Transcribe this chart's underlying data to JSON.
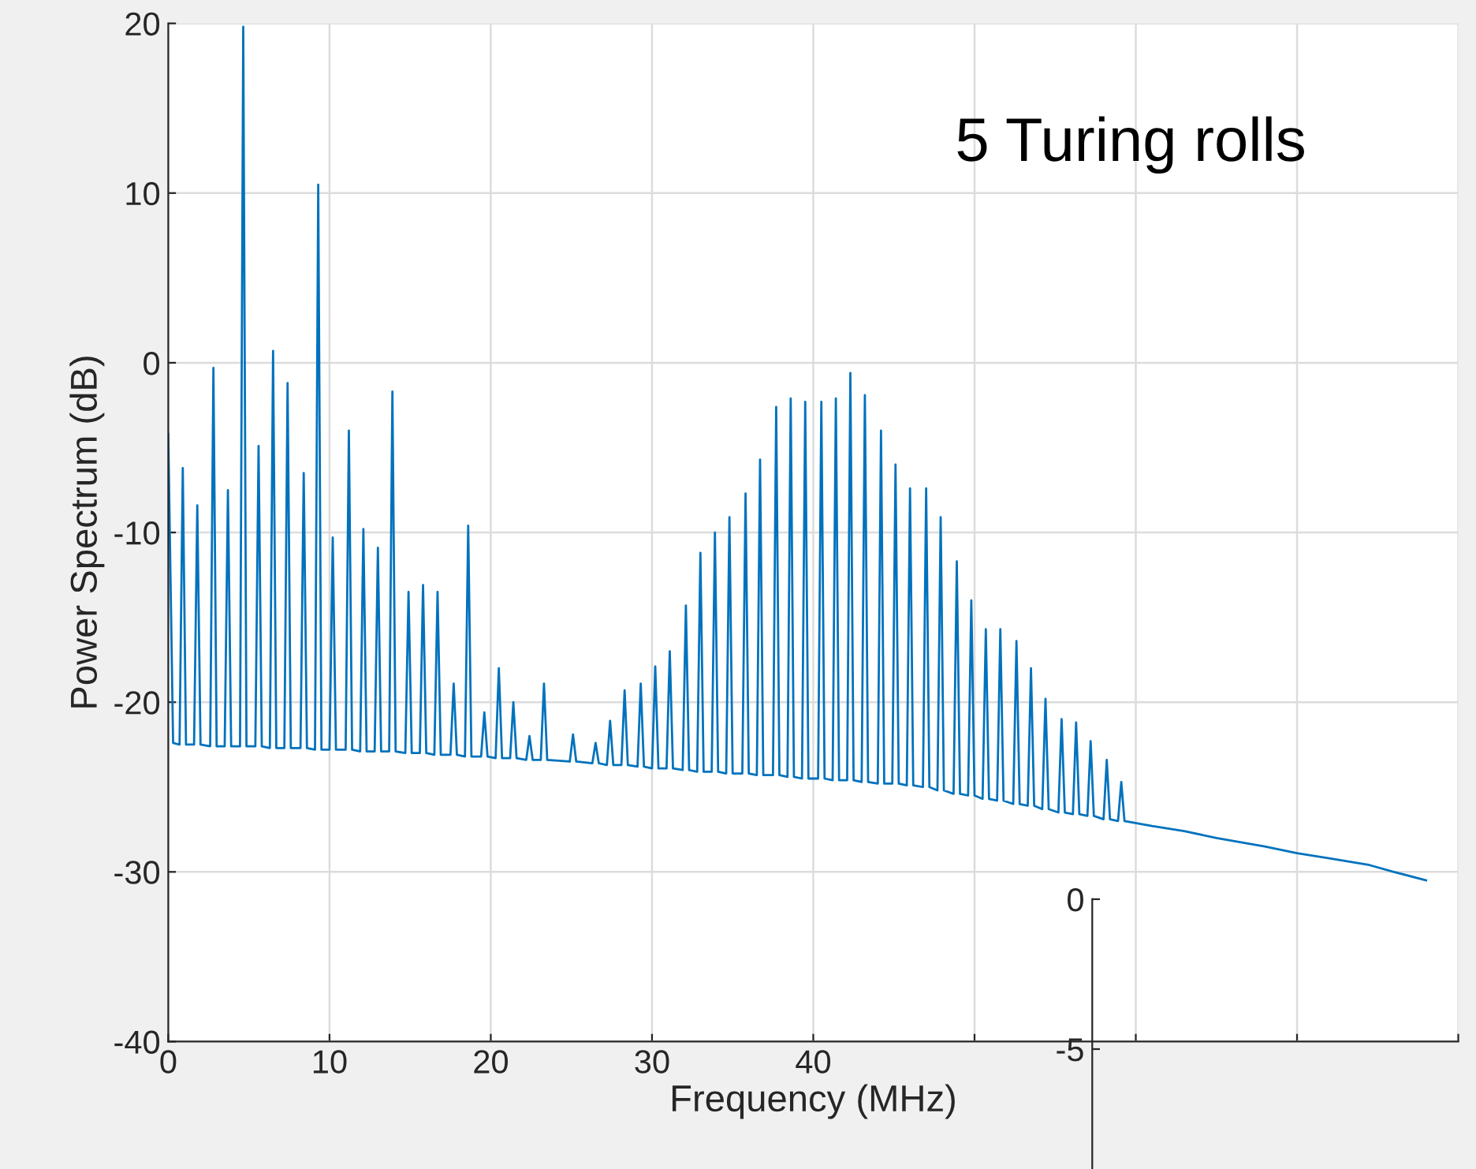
{
  "chart_data": [
    {
      "type": "line",
      "xlabel": "Frequency (MHz)",
      "ylabel": "Power Spectrum (dB)",
      "annotations": [
        "5 Turing rolls"
      ],
      "xlim": [
        0,
        80
      ],
      "xticks": [
        0,
        10,
        20,
        30,
        40,
        {
          "value": 50,
          "label": null
        },
        {
          "value": 60,
          "label": null
        },
        {
          "value": 70,
          "label": null
        },
        {
          "value": 80,
          "label": null
        }
      ],
      "ylim": [
        -40,
        20
      ],
      "yticks": [
        -40,
        -30,
        -20,
        -10,
        0,
        10,
        20
      ],
      "grid": true,
      "series": [
        {
          "color": "#0072bd",
          "x": [
            0,
            0.3,
            0.7,
            0.9,
            1.1,
            1.6,
            1.8,
            2.0,
            2.6,
            2.8,
            3.0,
            3.5,
            3.7,
            3.9,
            4.45,
            4.65,
            4.85,
            5.4,
            5.6,
            5.8,
            6.3,
            6.5,
            6.7,
            7.2,
            7.4,
            7.6,
            8.2,
            8.4,
            8.6,
            9.1,
            9.3,
            9.5,
            10.0,
            10.2,
            10.4,
            11.0,
            11.2,
            11.4,
            11.9,
            12.1,
            12.3,
            12.8,
            13.0,
            13.2,
            13.7,
            13.9,
            14.1,
            14.7,
            14.9,
            15.1,
            15.6,
            15.8,
            16.0,
            16.5,
            16.7,
            16.9,
            17.5,
            17.7,
            17.9,
            18.4,
            18.6,
            18.8,
            19.4,
            19.6,
            19.8,
            20.3,
            20.5,
            20.7,
            21.2,
            21.4,
            21.6,
            22.2,
            22.4,
            22.6,
            23.1,
            23.3,
            23.5,
            24.9,
            25.1,
            25.3,
            26.3,
            26.5,
            26.7,
            27.2,
            27.4,
            27.6,
            28.1,
            28.3,
            28.5,
            29.1,
            29.3,
            29.5,
            30.0,
            30.2,
            30.4,
            30.9,
            31.1,
            31.3,
            31.9,
            32.1,
            32.3,
            32.8,
            33.0,
            33.2,
            33.7,
            33.9,
            34.1,
            34.6,
            34.8,
            35.0,
            35.6,
            35.8,
            36.0,
            36.5,
            36.7,
            36.9,
            37.5,
            37.7,
            37.9,
            38.4,
            38.6,
            38.8,
            39.3,
            39.5,
            39.7,
            40.3,
            40.5,
            40.7,
            41.2,
            41.4,
            41.6,
            42.1,
            42.3,
            42.5,
            43.0,
            43.2,
            43.4,
            44.0,
            44.2,
            44.4,
            44.9,
            45.1,
            45.3,
            45.8,
            46.0,
            46.2,
            46.8,
            47.0,
            47.2,
            47.7,
            47.9,
            48.1,
            48.7,
            48.9,
            49.1,
            49.6,
            49.8,
            50.0,
            50.5,
            50.7,
            50.9,
            51.4,
            51.6,
            51.8,
            52.4,
            52.6,
            52.8,
            53.3,
            53.5,
            53.7,
            54.2,
            54.4,
            54.6,
            55.2,
            55.4,
            55.6,
            56.1,
            56.3,
            56.5,
            57.0,
            57.2,
            57.4,
            58.0,
            58.2,
            58.4,
            58.9,
            59.1,
            59.3,
            61,
            63,
            65,
            68,
            70,
            72,
            74.5,
            76,
            78
          ],
          "values": [
            -4.2,
            -22.4,
            -22.5,
            -6.2,
            -22.5,
            -22.5,
            -8.4,
            -22.5,
            -22.6,
            -0.3,
            -22.6,
            -22.6,
            -7.5,
            -22.6,
            -22.6,
            19.8,
            -22.6,
            -22.6,
            -4.9,
            -22.6,
            -22.7,
            0.7,
            -22.7,
            -22.7,
            -1.2,
            -22.7,
            -22.7,
            -6.5,
            -22.7,
            -22.8,
            10.5,
            -22.8,
            -22.8,
            -10.3,
            -22.8,
            -22.8,
            -4.0,
            -22.8,
            -22.9,
            -9.8,
            -22.9,
            -22.9,
            -10.9,
            -22.9,
            -22.9,
            -1.7,
            -22.9,
            -23.0,
            -13.5,
            -23.0,
            -23.0,
            -13.1,
            -23.0,
            -23.1,
            -13.5,
            -23.1,
            -23.1,
            -18.9,
            -23.1,
            -23.2,
            -9.6,
            -23.2,
            -23.2,
            -20.6,
            -23.2,
            -23.3,
            -18.0,
            -23.3,
            -23.3,
            -20.0,
            -23.3,
            -23.4,
            -22.0,
            -23.4,
            -23.4,
            -18.9,
            -23.4,
            -23.5,
            -21.9,
            -23.5,
            -23.6,
            -22.4,
            -23.6,
            -23.7,
            -21.1,
            -23.7,
            -23.7,
            -19.3,
            -23.7,
            -23.8,
            -18.9,
            -23.8,
            -23.9,
            -17.9,
            -23.9,
            -23.9,
            -17.0,
            -23.9,
            -24.0,
            -14.3,
            -24.0,
            -24.1,
            -11.2,
            -24.1,
            -24.1,
            -10.0,
            -24.1,
            -24.2,
            -9.1,
            -24.2,
            -24.2,
            -7.7,
            -24.2,
            -24.3,
            -5.7,
            -24.3,
            -24.3,
            -2.6,
            -24.3,
            -24.4,
            -2.1,
            -24.4,
            -24.5,
            -2.3,
            -24.5,
            -24.5,
            -2.3,
            -24.5,
            -24.6,
            -2.1,
            -24.6,
            -24.6,
            -0.6,
            -24.6,
            -24.7,
            -1.9,
            -24.7,
            -24.8,
            -4.0,
            -24.8,
            -24.8,
            -6.0,
            -24.8,
            -24.9,
            -7.4,
            -24.9,
            -25.0,
            -7.4,
            -25.0,
            -25.2,
            -9.1,
            -25.2,
            -25.4,
            -11.7,
            -25.4,
            -25.5,
            -14.0,
            -25.5,
            -25.7,
            -15.7,
            -25.7,
            -25.8,
            -15.7,
            -25.8,
            -26.0,
            -16.4,
            -26.0,
            -26.1,
            -18.0,
            -26.1,
            -26.3,
            -19.8,
            -26.3,
            -26.5,
            -21.0,
            -26.5,
            -26.6,
            -21.2,
            -26.6,
            -26.7,
            -22.3,
            -26.7,
            -26.9,
            -23.4,
            -26.9,
            -27.0,
            -24.7,
            -27.0,
            -27.3,
            -27.6,
            -28.0,
            -28.5,
            -28.9,
            -29.2,
            -29.6,
            -30.0,
            -30.5
          ]
        }
      ]
    },
    {
      "type": "line",
      "categories": [
        null,
        null,
        null,
        null
      ],
      "ylim": [
        -9,
        0
      ],
      "yticks": [
        0,
        -5
      ],
      "tick_labels": "y",
      "series": [
        {
          "color": "#0072bd",
          "values": [
            null,
            null,
            null,
            null
          ]
        }
      ]
    }
  ]
}
